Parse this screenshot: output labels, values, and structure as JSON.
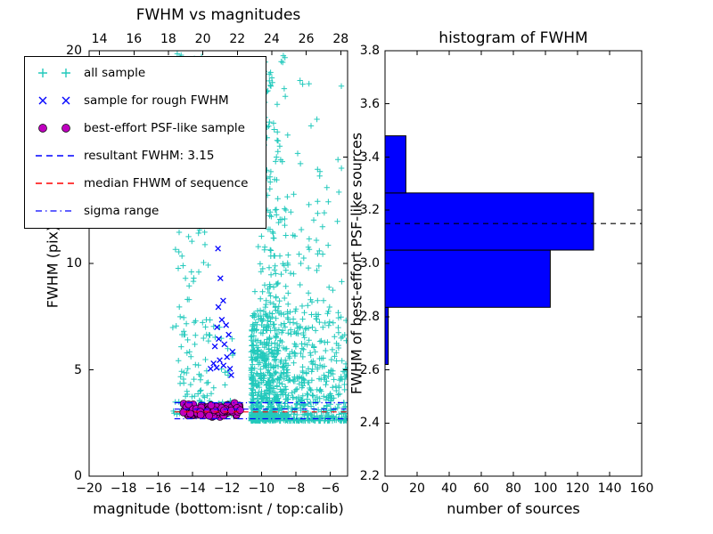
{
  "figure": {
    "background": "#ffffff"
  },
  "colors": {
    "cyan": "#22c9bc",
    "blue": "#0000ff",
    "magenta": "#bf00bf",
    "red": "#ff0000",
    "bar_fill": "#0000ff",
    "axis": "#000000"
  },
  "legend": {
    "entries": [
      {
        "label": "all sample",
        "type": "plus",
        "color": "cyan"
      },
      {
        "label": "sample for rough FWHM",
        "type": "x",
        "color": "blue"
      },
      {
        "label": "best-effort PSF-like sample",
        "type": "circle",
        "color": "magenta"
      },
      {
        "label": "resultant FWHM: 3.15",
        "type": "dashed",
        "color": "blue"
      },
      {
        "label": "median FHWM of sequence",
        "type": "dashed",
        "color": "red"
      },
      {
        "label": "sigma range",
        "type": "dashdot",
        "color": "blue"
      }
    ]
  },
  "chart_data": [
    {
      "type": "scatter",
      "title": "FWHM vs magnitudes",
      "xlabel": "magnitude (bottom:isnt / top:calib)",
      "ylabel": "FWHM (pix)",
      "xlim": [
        -20,
        -5
      ],
      "ylim": [
        0,
        20
      ],
      "x_ticks": {
        "values": [
          -20,
          -18,
          -16,
          -14,
          -12,
          -10,
          -8,
          -6
        ],
        "labels": [
          "−20",
          "−18",
          "−16",
          "−14",
          "−12",
          "−10",
          "−8",
          "−6"
        ]
      },
      "y_ticks": {
        "values": [
          0,
          5,
          10,
          15,
          20
        ],
        "labels": [
          "0",
          "5",
          "10",
          "15",
          "20"
        ]
      },
      "top_ticks": {
        "values": [
          -19.4,
          -17.4,
          -15.4,
          -13.4,
          -11.4,
          -9.4,
          -7.4,
          -5.4
        ],
        "labels": [
          "14",
          "16",
          "18",
          "20",
          "22",
          "24",
          "26",
          "28"
        ]
      },
      "series": [
        {
          "name": "all sample",
          "marker": "plus",
          "color": "cyan",
          "seed": 42,
          "clusters": [
            {
              "n": 110,
              "x": {
                "type": "uniform",
                "min": -15.15,
                "max": -12.95
              },
              "y": {
                "type": "power",
                "min": 2.9,
                "max": 20,
                "p": 1.9
              }
            },
            {
              "n": 28,
              "x": {
                "type": "uniform",
                "min": -14.95,
                "max": -13.4
              },
              "y": {
                "type": "uniform",
                "min": 14.5,
                "max": 20
              }
            },
            {
              "n": 360,
              "x": {
                "type": "gauss",
                "mean": -9.45,
                "sd": 0.5,
                "min": -10.45,
                "max": -8.45
              },
              "y": {
                "type": "power",
                "min": 2.7,
                "max": 20,
                "p": 2.7
              }
            },
            {
              "n": 800,
              "x": {
                "type": "power",
                "min": -10.6,
                "max": -5.05,
                "p": 1.6
              },
              "y": {
                "type": "power",
                "min": 2.6,
                "max": 7.8,
                "p": 2.5
              }
            },
            {
              "n": 90,
              "x": {
                "type": "uniform",
                "min": -9.6,
                "max": -5.3
              },
              "y": {
                "type": "power",
                "min": 4.5,
                "max": 13,
                "p": 2.0
              }
            },
            {
              "n": 30,
              "x": {
                "type": "uniform",
                "min": -8.3,
                "max": -5.2
              },
              "y": {
                "type": "uniform",
                "min": 8,
                "max": 19
              }
            },
            {
              "n": 90,
              "x": {
                "type": "uniform",
                "min": -14.6,
                "max": -11.2
              },
              "y": {
                "type": "gauss",
                "mean": 3.2,
                "sd": 0.18,
                "min": 2.8,
                "max": 3.7
              }
            },
            {
              "n": 60,
              "x": {
                "type": "uniform",
                "min": -14.8,
                "max": -11.5
              },
              "y": {
                "type": "power",
                "min": 3.0,
                "max": 7.5,
                "p": 2.2
              }
            }
          ]
        },
        {
          "name": "sample for rough FWHM",
          "marker": "x",
          "color": "blue",
          "points": [
            [
              -12.95,
              5.05
            ],
            [
              -12.78,
              5.3
            ],
            [
              -12.6,
              5.1
            ],
            [
              -12.42,
              5.45
            ],
            [
              -12.2,
              5.2
            ],
            [
              -12.0,
              5.6
            ],
            [
              -11.82,
              5.05
            ],
            [
              -11.68,
              5.85
            ],
            [
              -12.7,
              6.1
            ],
            [
              -12.48,
              6.45
            ],
            [
              -12.15,
              6.2
            ],
            [
              -11.9,
              6.65
            ],
            [
              -12.58,
              7.0
            ],
            [
              -12.3,
              7.35
            ],
            [
              -12.05,
              7.1
            ],
            [
              -12.5,
              7.95
            ],
            [
              -12.22,
              8.25
            ],
            [
              -12.38,
              9.3
            ],
            [
              -12.52,
              10.7
            ],
            [
              -12.42,
              12.0
            ],
            [
              -12.6,
              13.1
            ],
            [
              -11.75,
              4.75
            ]
          ]
        },
        {
          "name": "best-effort PSF-like sample",
          "marker": "circle",
          "color": "magenta",
          "seed": 7,
          "clusters": [
            {
              "n": 130,
              "x": {
                "type": "uniform",
                "min": -14.55,
                "max": -11.15
              },
              "y": {
                "type": "gauss",
                "mean": 3.08,
                "sd": 0.14,
                "min": 2.72,
                "max": 3.5
              }
            }
          ]
        }
      ],
      "hlines": [
        {
          "name": "resultant FWHM",
          "y": 3.15,
          "color": "blue",
          "style": "dashed",
          "xspan": [
            -15.05,
            -5.0
          ]
        },
        {
          "name": "median FHWM of sequence",
          "y": 3.02,
          "color": "red",
          "style": "dashed",
          "xspan": [
            -15.05,
            -5.0
          ]
        },
        {
          "name": "sigma range low",
          "y": 2.7,
          "color": "blue",
          "style": "dashdot",
          "xspan": [
            -15.05,
            -5.0
          ]
        },
        {
          "name": "sigma range high",
          "y": 3.45,
          "color": "blue",
          "style": "dashdot",
          "xspan": [
            -15.05,
            -5.0
          ]
        }
      ]
    },
    {
      "type": "bar",
      "orientation": "horizontal",
      "title": "histogram of FWHM",
      "xlabel": "number of sources",
      "ylabel": "FWHM of best-effort PSF-like sources",
      "xlim": [
        0,
        160
      ],
      "ylim": [
        2.2,
        3.8
      ],
      "x_ticks": {
        "values": [
          0,
          20,
          40,
          60,
          80,
          100,
          120,
          140,
          160
        ],
        "labels": [
          "0",
          "20",
          "40",
          "60",
          "80",
          "100",
          "120",
          "140",
          "160"
        ]
      },
      "y_ticks": {
        "values": [
          2.2,
          2.4,
          2.6,
          2.8,
          3.0,
          3.2,
          3.4,
          3.6,
          3.8
        ],
        "labels": [
          "2.2",
          "2.4",
          "2.6",
          "2.8",
          "3.0",
          "3.2",
          "3.4",
          "3.6",
          "3.8"
        ]
      },
      "bin_edges": [
        2.62,
        2.835,
        3.05,
        3.265,
        3.48
      ],
      "counts": [
        2,
        103,
        130,
        13
      ],
      "mean_line": {
        "y": 3.15,
        "style": "dashed",
        "color": "black"
      }
    }
  ]
}
